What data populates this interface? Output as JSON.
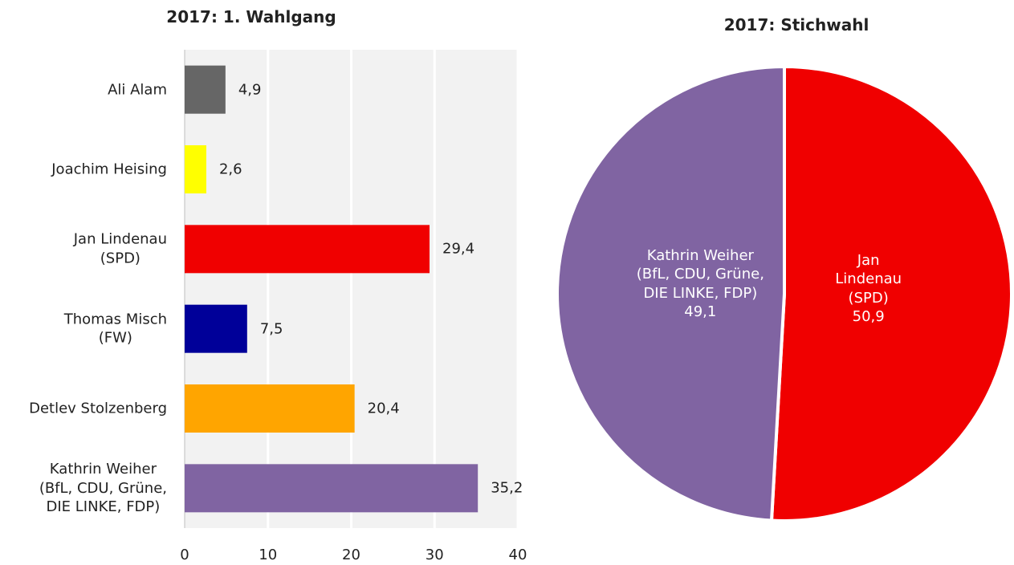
{
  "chart_data": [
    {
      "type": "barh",
      "title": "2017: 1. Wahlgang",
      "categories": [
        "Ali Alam",
        "Joachim Heising",
        "Jan Lindenau\n(SPD)",
        "Thomas Misch\n(FW)",
        "Detlev Stolzenberg",
        "Kathrin Weiher\n(BfL, CDU, Grüne,\nDIE LINKE, FDP)"
      ],
      "values": [
        4.9,
        2.6,
        29.4,
        7.5,
        20.4,
        35.2
      ],
      "value_labels": [
        "4,9",
        "2,6",
        "29,4",
        "7,5",
        "20,4",
        "35,2"
      ],
      "colors": [
        "#666666",
        "#ffff00",
        "#f00000",
        "#000099",
        "#ffa500",
        "#8064a2"
      ],
      "xlim": [
        0,
        40
      ],
      "xticks": [
        0,
        10,
        20,
        30,
        40
      ],
      "grid": true
    },
    {
      "type": "pie",
      "title": "2017: Stichwahl",
      "categories": [
        "Jan\nLindenau\n(SPD)",
        "Kathrin Weiher\n(BfL, CDU, Grüne,\nDIE LINKE, FDP)"
      ],
      "values": [
        50.9,
        49.1
      ],
      "value_labels": [
        "50,9",
        "49,1"
      ],
      "colors": [
        "#f00000",
        "#8064a2"
      ]
    }
  ]
}
